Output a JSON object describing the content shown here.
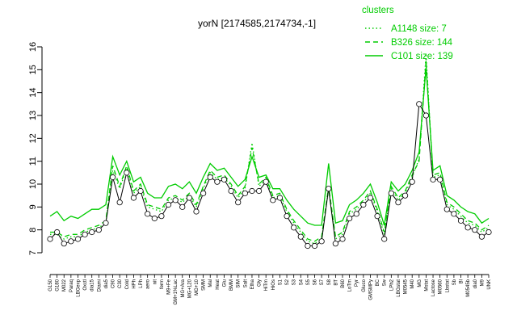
{
  "chart_data": {
    "type": "line",
    "title": "yorN [2174585,2174734,-1]",
    "xlabel": "",
    "ylabel": "",
    "ylim": [
      7,
      16
    ],
    "y_ticks": [
      7,
      8,
      9,
      10,
      11,
      12,
      13,
      14,
      15,
      16
    ],
    "grid": false,
    "legend_placement": "top-right",
    "legend_title": "clusters",
    "colors": {
      "series": "#00cc00",
      "points_fill": "#ffffff",
      "points_stroke": "#000000",
      "axis": "#000000"
    },
    "x_tick_labels": [
      "G150",
      "G180",
      "M022",
      "Paraq",
      "LBGexp",
      "Oxctl",
      "dia15",
      "Diami",
      "dia5",
      "C90",
      "C30",
      "Cold",
      "HPh",
      "LPh",
      "aero",
      "nit",
      "ferm",
      "M9+Fe",
      "GM+1%Lac",
      "MG+Ara",
      "MG+120",
      "MG+10",
      "SMM",
      "Mal",
      "Heat",
      "Glu",
      "BMM",
      "SIM",
      "Salt",
      "Etha",
      "Gly",
      "HiTm",
      "HiOs",
      "S1",
      "S2",
      "S3",
      "S4",
      "S5",
      "S6",
      "S7",
      "S8",
      "BT",
      "B60",
      "LoTm",
      "Pyr",
      "Gluco",
      "GMSMPy",
      "BC",
      "Sw",
      "LPh2",
      "LBGstat",
      "M0545",
      "M40",
      "MG",
      "Mstat",
      "Lactose",
      "M0560",
      "Lbstat",
      "Sb",
      "Bl",
      "M0545b",
      "dia0",
      "M9",
      "UNK"
    ],
    "series": [
      {
        "name": "A1148 size: 7",
        "style": "dotted",
        "values": [
          7.8,
          7.8,
          7.6,
          7.7,
          7.7,
          7.9,
          8.0,
          8.1,
          8.3,
          10.6,
          9.8,
          10.7,
          9.6,
          9.9,
          9.0,
          8.9,
          8.8,
          9.3,
          9.4,
          9.2,
          9.5,
          9.0,
          9.8,
          10.5,
          10.2,
          10.3,
          9.9,
          9.4,
          9.8,
          11.8,
          9.9,
          10.2,
          9.4,
          9.5,
          8.8,
          8.3,
          7.9,
          7.5,
          7.4,
          7.6,
          9.8,
          7.6,
          7.8,
          8.7,
          8.9,
          9.2,
          9.6,
          8.8,
          7.8,
          9.8,
          9.3,
          9.6,
          10.3,
          11.1,
          15.7,
          10.3,
          10.4,
          9.1,
          8.9,
          8.6,
          8.3,
          8.2,
          7.9,
          8.1
        ]
      },
      {
        "name": "B326 size: 144",
        "style": "dashed",
        "values": [
          7.9,
          7.9,
          7.7,
          7.8,
          7.8,
          8.0,
          8.1,
          8.2,
          8.4,
          10.8,
          9.9,
          10.8,
          9.7,
          10.0,
          9.1,
          9.0,
          8.9,
          9.4,
          9.5,
          9.3,
          9.6,
          9.1,
          9.9,
          10.6,
          10.3,
          10.4,
          10.0,
          9.5,
          9.9,
          11.6,
          10.0,
          10.3,
          9.5,
          9.6,
          8.9,
          8.4,
          8.0,
          7.6,
          7.5,
          7.7,
          9.9,
          7.7,
          7.9,
          8.8,
          9.0,
          9.3,
          9.7,
          8.9,
          7.9,
          9.9,
          9.4,
          9.7,
          10.4,
          11.0,
          15.4,
          10.4,
          10.5,
          9.2,
          9.0,
          8.7,
          8.4,
          8.3,
          8.0,
          8.2
        ]
      },
      {
        "name": "C101 size: 139",
        "style": "solid",
        "values": [
          8.6,
          8.8,
          8.4,
          8.6,
          8.5,
          8.7,
          8.9,
          8.9,
          9.1,
          11.2,
          10.4,
          11.0,
          10.1,
          10.3,
          9.6,
          9.4,
          9.4,
          9.9,
          10.0,
          9.8,
          10.1,
          9.6,
          10.3,
          10.9,
          10.6,
          10.7,
          10.3,
          9.9,
          10.2,
          11.2,
          10.3,
          10.4,
          9.8,
          9.8,
          9.3,
          8.9,
          8.6,
          8.3,
          8.2,
          8.2,
          10.9,
          8.3,
          8.4,
          9.1,
          9.3,
          9.6,
          10.0,
          9.2,
          8.2,
          10.1,
          9.7,
          10.0,
          10.6,
          11.4,
          15.1,
          10.6,
          10.8,
          9.5,
          9.3,
          9.0,
          8.8,
          8.7,
          8.3,
          8.5
        ]
      },
      {
        "name": "yorN",
        "style": "points",
        "values": [
          7.6,
          7.9,
          7.4,
          7.5,
          7.6,
          7.8,
          7.9,
          8.0,
          8.3,
          10.3,
          9.2,
          10.5,
          9.4,
          9.7,
          8.7,
          8.5,
          8.6,
          9.1,
          9.3,
          9.0,
          9.4,
          8.8,
          9.6,
          10.3,
          10.1,
          10.2,
          9.7,
          9.2,
          9.6,
          9.7,
          9.7,
          10.1,
          9.3,
          9.4,
          8.6,
          8.1,
          7.7,
          7.3,
          7.3,
          7.5,
          9.8,
          7.4,
          7.6,
          8.5,
          8.7,
          9.1,
          9.4,
          8.6,
          7.6,
          9.6,
          9.2,
          9.5,
          10.1,
          13.5,
          13.0,
          10.2,
          10.2,
          8.9,
          8.7,
          8.4,
          8.1,
          8.0,
          7.7,
          7.9
        ]
      }
    ]
  }
}
